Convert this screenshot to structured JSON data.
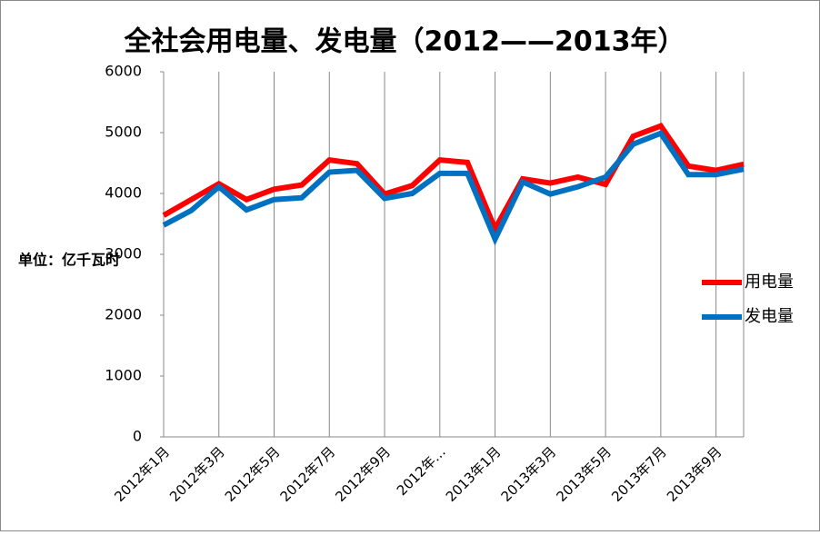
{
  "chart_data": {
    "type": "line",
    "title": "全社会用电量、发电量（2012——2013年）",
    "annotation": "单位：亿千瓦时",
    "categories": [
      "2012年1月",
      null,
      "2012年3月",
      null,
      "2012年5月",
      null,
      "2012年7月",
      null,
      "2012年9月",
      null,
      "2012年…",
      null,
      "2013年1月",
      null,
      "2013年3月",
      null,
      "2013年5月",
      null,
      "2013年7月",
      null,
      "2013年9月",
      null
    ],
    "series": [
      {
        "name": "用电量",
        "color": "#ff0000",
        "values": [
          3640,
          3900,
          4160,
          3900,
          4070,
          4140,
          4550,
          4490,
          3990,
          4130,
          4550,
          4510,
          3420,
          4240,
          4170,
          4270,
          4150,
          4940,
          5110,
          4450,
          4380,
          4480
        ]
      },
      {
        "name": "发电量",
        "color": "#0070c0",
        "values": [
          3480,
          3720,
          4110,
          3730,
          3900,
          3930,
          4350,
          4380,
          3920,
          4000,
          4330,
          4330,
          3250,
          4190,
          3990,
          4110,
          4270,
          4810,
          4990,
          4310,
          4310,
          4400
        ]
      }
    ],
    "ylim": [
      0,
      6000
    ],
    "yticks": [
      0,
      1000,
      2000,
      3000,
      4000,
      5000,
      6000
    ],
    "legend": "right"
  }
}
